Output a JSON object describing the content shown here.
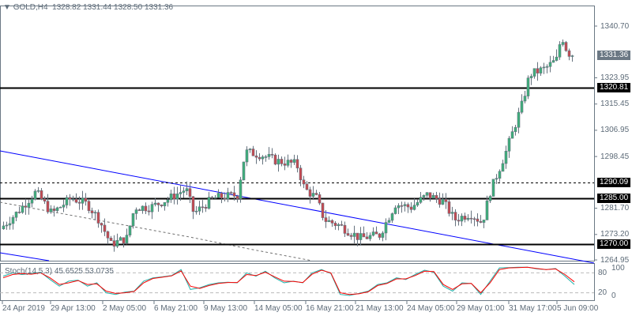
{
  "header": {
    "symbol": "GOLD,H4",
    "open": "1328.82",
    "high": "1331.44",
    "low": "1328.50",
    "close": "1331.36"
  },
  "price_axis": {
    "ticks": [
      "1340.70",
      "1323.95",
      "1315.45",
      "1306.95",
      "1298.45",
      "1281.70",
      "1273.20",
      "1264.95"
    ]
  },
  "levels": [
    {
      "label": "1320.81",
      "price": 1320.81,
      "style": "solid"
    },
    {
      "label": "1290.09",
      "price": 1290.09,
      "style": "dashed"
    },
    {
      "label": "1285.00",
      "price": 1285.0,
      "style": "solid"
    },
    {
      "label": "1270.00",
      "price": 1270.0,
      "style": "solid"
    }
  ],
  "current_price": {
    "label": "1331.36",
    "price": 1331.36
  },
  "time_axis": {
    "ticks": [
      "24 Apr 2019",
      "29 Apr 13:00",
      "2 May 05:00",
      "6 May 21:00",
      "9 May 13:00",
      "14 May 05:00",
      "16 May 21:00",
      "21 May 13:00",
      "24 May 05:00",
      "29 May 01:00",
      "31 May 17:00",
      "5 Jun 09:00"
    ]
  },
  "indicator": {
    "label": "Stoch(14,5,3) 45.6525 53.0735",
    "levels": [
      "80",
      "20"
    ],
    "max": "100",
    "min": "0"
  },
  "colors": {
    "bull": "#3cb07a",
    "bear": "#c9464f",
    "wick": "#66737f",
    "trend": "#0000ff",
    "main": "#20b2aa",
    "signal": "#ff0000"
  },
  "chart_data": {
    "type": "candlestick",
    "price_path": [
      [
        0,
        1275
      ],
      [
        20,
        1280
      ],
      [
        45,
        1287
      ],
      [
        65,
        1280
      ],
      [
        90,
        1285
      ],
      [
        110,
        1283
      ],
      [
        125,
        1278
      ],
      [
        140,
        1270
      ],
      [
        160,
        1272
      ],
      [
        170,
        1282
      ],
      [
        190,
        1282
      ],
      [
        215,
        1285
      ],
      [
        235,
        1288
      ],
      [
        245,
        1280
      ],
      [
        270,
        1285
      ],
      [
        300,
        1286
      ],
      [
        310,
        1300
      ],
      [
        330,
        1299
      ],
      [
        350,
        1297
      ],
      [
        375,
        1296
      ],
      [
        385,
        1288
      ],
      [
        400,
        1285
      ],
      [
        410,
        1278
      ],
      [
        430,
        1276
      ],
      [
        455,
        1272
      ],
      [
        480,
        1273
      ],
      [
        500,
        1283
      ],
      [
        520,
        1282
      ],
      [
        540,
        1286
      ],
      [
        560,
        1284
      ],
      [
        575,
        1278
      ],
      [
        595,
        1280
      ],
      [
        610,
        1277
      ],
      [
        620,
        1287
      ],
      [
        640,
        1300
      ],
      [
        660,
        1315
      ],
      [
        670,
        1325
      ],
      [
        690,
        1327
      ],
      [
        705,
        1330
      ],
      [
        710,
        1338
      ],
      [
        718,
        1332
      ],
      [
        727,
        1331.36
      ]
    ],
    "stoch_main": [
      70,
      80,
      75,
      78,
      82,
      60,
      40,
      55,
      58,
      40,
      50,
      20,
      15,
      22,
      25,
      55,
      65,
      68,
      72,
      90,
      30,
      35,
      45,
      50,
      52,
      50,
      80,
      70,
      85,
      65,
      50,
      55,
      50,
      80,
      90,
      78,
      15,
      12,
      18,
      25,
      45,
      50,
      65,
      60,
      75,
      88,
      82,
      40,
      25,
      50,
      48,
      15,
      55,
      95,
      96,
      97,
      97,
      92,
      90,
      93,
      70,
      45
    ],
    "stoch_signal": [
      65,
      75,
      78,
      76,
      80,
      65,
      45,
      50,
      57,
      45,
      47,
      25,
      18,
      20,
      24,
      50,
      63,
      67,
      71,
      86,
      40,
      33,
      42,
      48,
      51,
      51,
      75,
      72,
      82,
      68,
      55,
      54,
      51,
      76,
      88,
      80,
      20,
      15,
      17,
      23,
      42,
      48,
      62,
      62,
      72,
      85,
      84,
      45,
      30,
      47,
      48,
      20,
      50,
      90,
      95,
      96,
      97,
      93,
      90,
      92,
      75,
      53
    ],
    "ylim": [
      1262,
      1348
    ]
  }
}
